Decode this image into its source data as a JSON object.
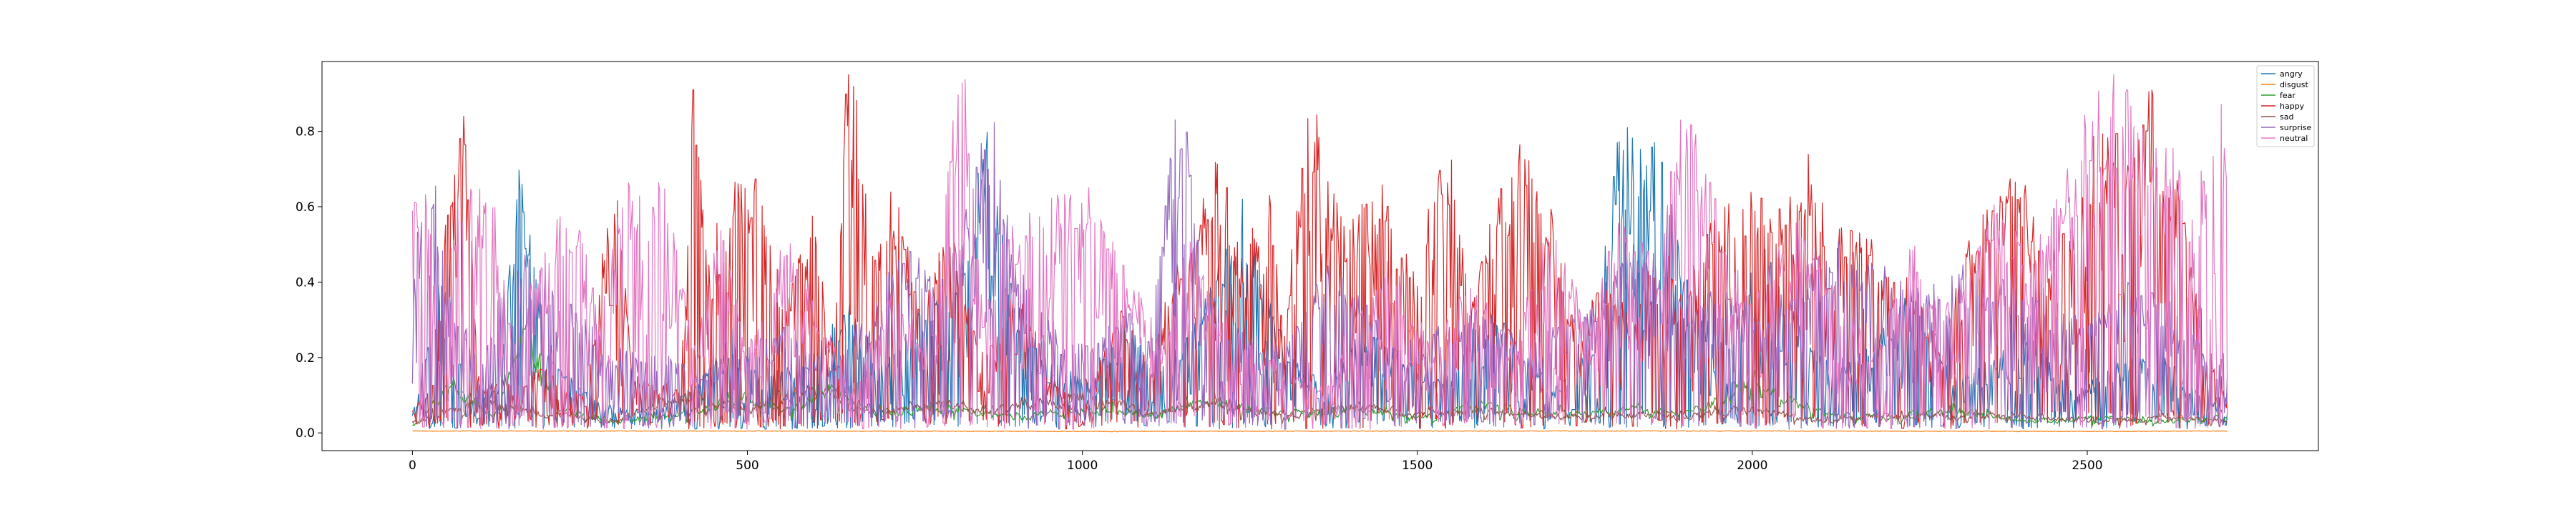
{
  "chart_data": {
    "type": "line",
    "x_range": [
      0,
      2710
    ],
    "xlim": [
      -135,
      2845
    ],
    "ylim": [
      -0.047,
      0.985
    ],
    "x_ticks": [
      0,
      500,
      1000,
      1500,
      2000,
      2500
    ],
    "x_tick_labels": [
      "0",
      "500",
      "1000",
      "1500",
      "2000",
      "2500"
    ],
    "y_ticks": [
      0.0,
      0.2,
      0.4,
      0.6,
      0.8
    ],
    "y_tick_labels": [
      "0.0",
      "0.2",
      "0.4",
      "0.6",
      "0.8"
    ],
    "legend_position": "top-right",
    "grid": false,
    "series": [
      {
        "name": "angry",
        "color": "#1f77b4",
        "points": [
          [
            0,
            0.05
          ],
          [
            40,
            0.35
          ],
          [
            80,
            0.08
          ],
          [
            130,
            0.12
          ],
          [
            160,
            0.65
          ],
          [
            200,
            0.22
          ],
          [
            260,
            0.1
          ],
          [
            300,
            0.06
          ],
          [
            350,
            0.05
          ],
          [
            420,
            0.1
          ],
          [
            480,
            0.25
          ],
          [
            520,
            0.12
          ],
          [
            600,
            0.2
          ],
          [
            650,
            0.3
          ],
          [
            700,
            0.15
          ],
          [
            760,
            0.28
          ],
          [
            820,
            0.4
          ],
          [
            860,
            0.73
          ],
          [
            900,
            0.3
          ],
          [
            960,
            0.2
          ],
          [
            1000,
            0.12
          ],
          [
            1060,
            0.25
          ],
          [
            1120,
            0.15
          ],
          [
            1180,
            0.3
          ],
          [
            1240,
            0.55
          ],
          [
            1300,
            0.2
          ],
          [
            1360,
            0.1
          ],
          [
            1420,
            0.25
          ],
          [
            1480,
            0.18
          ],
          [
            1540,
            0.12
          ],
          [
            1600,
            0.3
          ],
          [
            1660,
            0.2
          ],
          [
            1700,
            0.1
          ],
          [
            1760,
            0.2
          ],
          [
            1800,
            0.67
          ],
          [
            1860,
            0.75
          ],
          [
            1900,
            0.35
          ],
          [
            1960,
            0.2
          ],
          [
            2020,
            0.45
          ],
          [
            2060,
            0.28
          ],
          [
            2120,
            0.15
          ],
          [
            2180,
            0.2
          ],
          [
            2240,
            0.35
          ],
          [
            2300,
            0.12
          ],
          [
            2360,
            0.18
          ],
          [
            2420,
            0.22
          ],
          [
            2480,
            0.1
          ],
          [
            2540,
            0.15
          ],
          [
            2600,
            0.2
          ],
          [
            2660,
            0.1
          ],
          [
            2710,
            0.05
          ]
        ]
      },
      {
        "name": "disgust",
        "color": "#ff7f0e",
        "points": [
          [
            0,
            0.005
          ],
          [
            500,
            0.005
          ],
          [
            1000,
            0.004
          ],
          [
            1500,
            0.005
          ],
          [
            2000,
            0.005
          ],
          [
            2500,
            0.004
          ],
          [
            2710,
            0.005
          ]
        ]
      },
      {
        "name": "fear",
        "color": "#2ca02c",
        "points": [
          [
            0,
            0.02
          ],
          [
            60,
            0.12
          ],
          [
            120,
            0.04
          ],
          [
            170,
            0.25
          ],
          [
            220,
            0.06
          ],
          [
            300,
            0.03
          ],
          [
            400,
            0.05
          ],
          [
            500,
            0.09
          ],
          [
            560,
            0.06
          ],
          [
            620,
            0.12
          ],
          [
            680,
            0.05
          ],
          [
            800,
            0.07
          ],
          [
            900,
            0.04
          ],
          [
            1000,
            0.06
          ],
          [
            1100,
            0.05
          ],
          [
            1200,
            0.08
          ],
          [
            1300,
            0.05
          ],
          [
            1400,
            0.06
          ],
          [
            1500,
            0.04
          ],
          [
            1600,
            0.07
          ],
          [
            1700,
            0.05
          ],
          [
            1800,
            0.06
          ],
          [
            1900,
            0.05
          ],
          [
            2000,
            0.12
          ],
          [
            2100,
            0.05
          ],
          [
            2200,
            0.04
          ],
          [
            2300,
            0.06
          ],
          [
            2400,
            0.03
          ],
          [
            2500,
            0.04
          ],
          [
            2600,
            0.03
          ],
          [
            2710,
            0.04
          ]
        ]
      },
      {
        "name": "happy",
        "color": "#d62728",
        "points": [
          [
            0,
            0.05
          ],
          [
            30,
            0.12
          ],
          [
            60,
            0.7
          ],
          [
            75,
            0.82
          ],
          [
            100,
            0.12
          ],
          [
            200,
            0.15
          ],
          [
            260,
            0.08
          ],
          [
            300,
            0.65
          ],
          [
            330,
            0.14
          ],
          [
            400,
            0.1
          ],
          [
            420,
            0.87
          ],
          [
            440,
            0.4
          ],
          [
            480,
            0.62
          ],
          [
            520,
            0.55
          ],
          [
            560,
            0.3
          ],
          [
            600,
            0.52
          ],
          [
            630,
            0.2
          ],
          [
            650,
            0.93
          ],
          [
            665,
            0.78
          ],
          [
            690,
            0.4
          ],
          [
            720,
            0.6
          ],
          [
            760,
            0.25
          ],
          [
            800,
            0.5
          ],
          [
            850,
            0.18
          ],
          [
            900,
            0.35
          ],
          [
            960,
            0.12
          ],
          [
            1000,
            0.05
          ],
          [
            1060,
            0.3
          ],
          [
            1100,
            0.15
          ],
          [
            1150,
            0.45
          ],
          [
            1200,
            0.68
          ],
          [
            1240,
            0.38
          ],
          [
            1280,
            0.6
          ],
          [
            1300,
            0.25
          ],
          [
            1340,
            0.84
          ],
          [
            1370,
            0.55
          ],
          [
            1400,
            0.48
          ],
          [
            1450,
            0.6
          ],
          [
            1500,
            0.35
          ],
          [
            1540,
            0.76
          ],
          [
            1580,
            0.3
          ],
          [
            1620,
            0.55
          ],
          [
            1660,
            0.7
          ],
          [
            1700,
            0.55
          ],
          [
            1740,
            0.2
          ],
          [
            1780,
            0.4
          ],
          [
            1820,
            0.25
          ],
          [
            1860,
            0.45
          ],
          [
            1900,
            0.3
          ],
          [
            1940,
            0.55
          ],
          [
            1980,
            0.5
          ],
          [
            2000,
            0.62
          ],
          [
            2040,
            0.55
          ],
          [
            2080,
            0.67
          ],
          [
            2120,
            0.52
          ],
          [
            2160,
            0.45
          ],
          [
            2200,
            0.4
          ],
          [
            2240,
            0.35
          ],
          [
            2280,
            0.2
          ],
          [
            2320,
            0.45
          ],
          [
            2360,
            0.55
          ],
          [
            2400,
            0.6
          ],
          [
            2440,
            0.4
          ],
          [
            2480,
            0.5
          ],
          [
            2520,
            0.72
          ],
          [
            2560,
            0.65
          ],
          [
            2600,
            0.78
          ],
          [
            2640,
            0.55
          ],
          [
            2680,
            0.2
          ],
          [
            2710,
            0.1
          ]
        ]
      },
      {
        "name": "sad",
        "color": "#8c564b",
        "points": [
          [
            0,
            0.03
          ],
          [
            100,
            0.08
          ],
          [
            200,
            0.05
          ],
          [
            300,
            0.03
          ],
          [
            400,
            0.1
          ],
          [
            500,
            0.06
          ],
          [
            600,
            0.12
          ],
          [
            700,
            0.05
          ],
          [
            800,
            0.08
          ],
          [
            900,
            0.06
          ],
          [
            1000,
            0.1
          ],
          [
            1100,
            0.05
          ],
          [
            1200,
            0.08
          ],
          [
            1300,
            0.04
          ],
          [
            1400,
            0.07
          ],
          [
            1500,
            0.05
          ],
          [
            1600,
            0.06
          ],
          [
            1700,
            0.04
          ],
          [
            1800,
            0.05
          ],
          [
            1900,
            0.04
          ],
          [
            2000,
            0.06
          ],
          [
            2100,
            0.03
          ],
          [
            2200,
            0.05
          ],
          [
            2300,
            0.04
          ],
          [
            2400,
            0.05
          ],
          [
            2500,
            0.03
          ],
          [
            2600,
            0.04
          ],
          [
            2710,
            0.03
          ]
        ]
      },
      {
        "name": "surprise",
        "color": "#9467bd",
        "points": [
          [
            0,
            0.3
          ],
          [
            20,
            0.75
          ],
          [
            50,
            0.4
          ],
          [
            100,
            0.15
          ],
          [
            150,
            0.45
          ],
          [
            200,
            0.35
          ],
          [
            250,
            0.28
          ],
          [
            300,
            0.2
          ],
          [
            380,
            0.18
          ],
          [
            440,
            0.15
          ],
          [
            500,
            0.2
          ],
          [
            560,
            0.25
          ],
          [
            620,
            0.15
          ],
          [
            680,
            0.3
          ],
          [
            740,
            0.45
          ],
          [
            800,
            0.35
          ],
          [
            860,
            0.77
          ],
          [
            900,
            0.4
          ],
          [
            960,
            0.25
          ],
          [
            1000,
            0.2
          ],
          [
            1060,
            0.3
          ],
          [
            1100,
            0.2
          ],
          [
            1150,
            0.91
          ],
          [
            1180,
            0.35
          ],
          [
            1240,
            0.25
          ],
          [
            1300,
            0.2
          ],
          [
            1360,
            0.4
          ],
          [
            1420,
            0.3
          ],
          [
            1480,
            0.2
          ],
          [
            1540,
            0.25
          ],
          [
            1600,
            0.3
          ],
          [
            1660,
            0.2
          ],
          [
            1720,
            0.25
          ],
          [
            1780,
            0.35
          ],
          [
            1840,
            0.45
          ],
          [
            1900,
            0.3
          ],
          [
            1960,
            0.35
          ],
          [
            2020,
            0.25
          ],
          [
            2080,
            0.4
          ],
          [
            2140,
            0.45
          ],
          [
            2200,
            0.38
          ],
          [
            2260,
            0.32
          ],
          [
            2320,
            0.4
          ],
          [
            2380,
            0.35
          ],
          [
            2440,
            0.3
          ],
          [
            2500,
            0.25
          ],
          [
            2560,
            0.35
          ],
          [
            2620,
            0.3
          ],
          [
            2680,
            0.2
          ],
          [
            2710,
            0.18
          ]
        ]
      },
      {
        "name": "neutral",
        "color": "#e377c2",
        "points": [
          [
            0,
            0.55
          ],
          [
            20,
            0.6
          ],
          [
            40,
            0.2
          ],
          [
            70,
            0.6
          ],
          [
            90,
            0.59
          ],
          [
            120,
            0.55
          ],
          [
            150,
            0.2
          ],
          [
            200,
            0.45
          ],
          [
            240,
            0.55
          ],
          [
            280,
            0.3
          ],
          [
            310,
            0.58
          ],
          [
            380,
            0.57
          ],
          [
            420,
            0.2
          ],
          [
            460,
            0.5
          ],
          [
            500,
            0.2
          ],
          [
            560,
            0.45
          ],
          [
            600,
            0.3
          ],
          [
            660,
            0.1
          ],
          [
            720,
            0.4
          ],
          [
            760,
            0.2
          ],
          [
            820,
            0.93
          ],
          [
            850,
            0.3
          ],
          [
            900,
            0.5
          ],
          [
            960,
            0.55
          ],
          [
            1000,
            0.57
          ],
          [
            1060,
            0.4
          ],
          [
            1120,
            0.2
          ],
          [
            1160,
            0.45
          ],
          [
            1200,
            0.3
          ],
          [
            1260,
            0.2
          ],
          [
            1300,
            0.15
          ],
          [
            1360,
            0.1
          ],
          [
            1400,
            0.25
          ],
          [
            1460,
            0.4
          ],
          [
            1520,
            0.2
          ],
          [
            1580,
            0.35
          ],
          [
            1640,
            0.2
          ],
          [
            1700,
            0.5
          ],
          [
            1760,
            0.25
          ],
          [
            1800,
            0.55
          ],
          [
            1860,
            0.4
          ],
          [
            1900,
            0.82
          ],
          [
            1960,
            0.45
          ],
          [
            2000,
            0.3
          ],
          [
            2060,
            0.5
          ],
          [
            2120,
            0.35
          ],
          [
            2180,
            0.2
          ],
          [
            2240,
            0.45
          ],
          [
            2300,
            0.3
          ],
          [
            2360,
            0.55
          ],
          [
            2420,
            0.4
          ],
          [
            2480,
            0.65
          ],
          [
            2540,
            0.85
          ],
          [
            2600,
            0.7
          ],
          [
            2660,
            0.55
          ],
          [
            2700,
            0.77
          ],
          [
            2710,
            0.6
          ]
        ]
      }
    ]
  }
}
